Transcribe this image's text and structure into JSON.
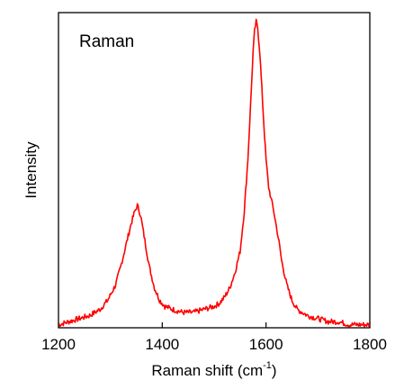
{
  "chart_data": {
    "type": "line",
    "title": "",
    "annotation": "Raman",
    "xlabel": {
      "prefix": "Raman shift (cm",
      "superscript": "-1",
      "suffix": ")"
    },
    "ylabel": "Intensity",
    "xlim": [
      1200,
      1800
    ],
    "ylim": [
      0,
      1.03
    ],
    "xticks": [
      1200,
      1400,
      1600,
      1800
    ],
    "xtick_labels": [
      "1200",
      "1400",
      "1600",
      "1800"
    ],
    "grid": false,
    "series": [
      {
        "color": "#ff0000",
        "x": [
          1200,
          1220,
          1240,
          1260,
          1280,
          1295,
          1310,
          1320,
          1330,
          1340,
          1347,
          1352,
          1358,
          1365,
          1375,
          1385,
          1395,
          1405,
          1420,
          1440,
          1460,
          1480,
          1500,
          1510,
          1520,
          1530,
          1540,
          1550,
          1558,
          1565,
          1570,
          1575,
          1578,
          1581,
          1584,
          1588,
          1592,
          1596,
          1600,
          1605,
          1610,
          1615,
          1620,
          1625,
          1630,
          1640,
          1650,
          1660,
          1680,
          1700,
          1720,
          1740,
          1760,
          1780,
          1800
        ],
        "y": [
          0.01,
          0.02,
          0.03,
          0.04,
          0.06,
          0.09,
          0.14,
          0.2,
          0.27,
          0.34,
          0.38,
          0.4,
          0.37,
          0.3,
          0.2,
          0.13,
          0.09,
          0.07,
          0.06,
          0.05,
          0.05,
          0.06,
          0.07,
          0.08,
          0.1,
          0.13,
          0.18,
          0.25,
          0.38,
          0.55,
          0.72,
          0.9,
          0.97,
          1.0,
          0.98,
          0.9,
          0.78,
          0.66,
          0.55,
          0.46,
          0.42,
          0.38,
          0.33,
          0.28,
          0.22,
          0.14,
          0.09,
          0.06,
          0.04,
          0.03,
          0.02,
          0.02,
          0.01,
          0.01,
          0.01
        ]
      }
    ]
  }
}
